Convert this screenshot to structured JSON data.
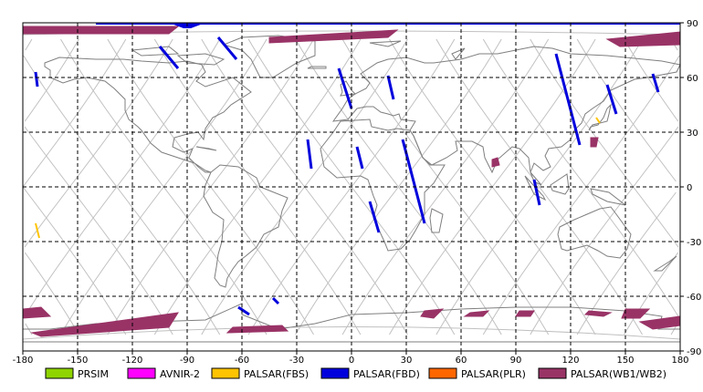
{
  "axes": {
    "x_ticks": [
      "-180",
      "-150",
      "-120",
      "-90",
      "-60",
      "-30",
      "0",
      "30",
      "60",
      "90",
      "120",
      "150",
      "180"
    ],
    "y_ticks": [
      "90",
      "60",
      "30",
      "0",
      "-30",
      "-60",
      "-90"
    ]
  },
  "legend": [
    {
      "label": "PRSIM",
      "color": "#8fd400"
    },
    {
      "label": "AVNIR-2",
      "color": "#ff00ff"
    },
    {
      "label": "PALSAR(FBS)",
      "color": "#ffc400"
    },
    {
      "label": "PALSAR(FBD)",
      "color": "#0000dd"
    },
    {
      "label": "PALSAR(PLR)",
      "color": "#ff6600"
    },
    {
      "label": "PALSAR(WB1/WB2)",
      "color": "#993366"
    }
  ],
  "colors": {
    "coast": "#7f7f7f",
    "orbit": "#c0c0c0",
    "grid": "#000000"
  },
  "fbd_swaths": [
    {
      "lon": [
        -173,
        -172
      ],
      "lat": [
        63,
        55
      ]
    },
    {
      "lon": [
        -73,
        -63
      ],
      "lat": [
        82,
        70
      ]
    },
    {
      "lon": [
        -105,
        -95
      ],
      "lat": [
        77,
        65
      ]
    },
    {
      "lon": [
        -7,
        0
      ],
      "lat": [
        65,
        43
      ]
    },
    {
      "lon": [
        20,
        23
      ],
      "lat": [
        61,
        48
      ]
    },
    {
      "lon": [
        -24,
        -22
      ],
      "lat": [
        26,
        10
      ]
    },
    {
      "lon": [
        3,
        6
      ],
      "lat": [
        22,
        10
      ]
    },
    {
      "lon": [
        10,
        15
      ],
      "lat": [
        -8,
        -25
      ]
    },
    {
      "lon": [
        28,
        40
      ],
      "lat": [
        26,
        -20
      ]
    },
    {
      "lon": [
        112,
        125
      ],
      "lat": [
        73,
        23
      ]
    },
    {
      "lon": [
        140,
        145
      ],
      "lat": [
        56,
        40
      ]
    },
    {
      "lon": [
        165,
        168
      ],
      "lat": [
        62,
        52
      ]
    },
    {
      "lon": [
        100,
        103
      ],
      "lat": [
        4,
        -10
      ]
    },
    {
      "lon": [
        -62,
        -56
      ],
      "lat": [
        -66,
        -70
      ]
    },
    {
      "lon": [
        -43,
        -40
      ],
      "lat": [
        -61,
        -64
      ]
    }
  ],
  "fbs_swaths": [
    {
      "lon": [
        -173,
        -171
      ],
      "lat": [
        -20,
        -28
      ]
    },
    {
      "lon": [
        134,
        136
      ],
      "lat": [
        38,
        35
      ]
    }
  ],
  "wb_patches": [
    [
      [
        -180,
        88
      ],
      [
        -95,
        88
      ],
      [
        -100,
        84
      ],
      [
        -180,
        84
      ]
    ],
    [
      [
        -45,
        82
      ],
      [
        25,
        86
      ],
      [
        20,
        82
      ],
      [
        -45,
        79
      ]
    ],
    [
      [
        140,
        81
      ],
      [
        180,
        85
      ],
      [
        180,
        78
      ],
      [
        147,
        77
      ]
    ],
    [
      [
        -180,
        -67
      ],
      [
        -170,
        -66
      ],
      [
        -165,
        -71
      ],
      [
        -180,
        -72
      ]
    ],
    [
      [
        -175,
        -80
      ],
      [
        -95,
        -69
      ],
      [
        -100,
        -77
      ],
      [
        -170,
        -82
      ]
    ],
    [
      [
        -68,
        -80
      ],
      [
        -35,
        -79
      ],
      [
        -38,
        -76
      ],
      [
        -65,
        -77
      ]
    ],
    [
      [
        40,
        -68
      ],
      [
        50,
        -67
      ],
      [
        45,
        -72
      ],
      [
        38,
        -71
      ]
    ],
    [
      [
        65,
        -69
      ],
      [
        75,
        -68
      ],
      [
        72,
        -71
      ],
      [
        62,
        -71
      ]
    ],
    [
      [
        92,
        -68
      ],
      [
        100,
        -68
      ],
      [
        98,
        -71
      ],
      [
        90,
        -71
      ]
    ],
    [
      [
        130,
        -68
      ],
      [
        142,
        -69
      ],
      [
        138,
        -71
      ],
      [
        128,
        -70
      ]
    ],
    [
      [
        150,
        -67
      ],
      [
        163,
        -67
      ],
      [
        158,
        -72
      ],
      [
        148,
        -72
      ]
    ],
    [
      [
        158,
        -74
      ],
      [
        180,
        -71
      ],
      [
        180,
        -76
      ],
      [
        165,
        -78
      ]
    ],
    [
      [
        77,
        15
      ],
      [
        80,
        16
      ],
      [
        81,
        12
      ],
      [
        77,
        11
      ]
    ],
    [
      [
        131,
        27
      ],
      [
        135,
        27
      ],
      [
        134,
        22
      ],
      [
        131,
        22
      ]
    ]
  ],
  "land": [
    [
      [
        -168,
        68
      ],
      [
        -160,
        71
      ],
      [
        -140,
        70
      ],
      [
        -125,
        70
      ],
      [
        -115,
        69
      ],
      [
        -100,
        68
      ],
      [
        -90,
        69
      ],
      [
        -82,
        67
      ],
      [
        -80,
        63
      ],
      [
        -85,
        58
      ],
      [
        -80,
        55
      ],
      [
        -65,
        60
      ],
      [
        -55,
        52
      ],
      [
        -66,
        45
      ],
      [
        -70,
        41
      ],
      [
        -76,
        38
      ],
      [
        -80,
        32
      ],
      [
        -81,
        26
      ],
      [
        -84,
        30
      ],
      [
        -90,
        29
      ],
      [
        -97,
        27
      ],
      [
        -98,
        22
      ],
      [
        -92,
        19
      ],
      [
        -87,
        21
      ],
      [
        -89,
        16
      ],
      [
        -84,
        11
      ],
      [
        -80,
        8
      ],
      [
        -77,
        8
      ],
      [
        -80,
        9
      ],
      [
        -86,
        13
      ],
      [
        -92,
        15
      ],
      [
        -104,
        19
      ],
      [
        -110,
        24
      ],
      [
        -115,
        31
      ],
      [
        -117,
        33
      ],
      [
        -122,
        37
      ],
      [
        -124,
        42
      ],
      [
        -124,
        48
      ],
      [
        -130,
        54
      ],
      [
        -135,
        58
      ],
      [
        -145,
        60
      ],
      [
        -152,
        59
      ],
      [
        -158,
        57
      ],
      [
        -165,
        60
      ],
      [
        -165,
        64
      ],
      [
        -168,
        66
      ]
    ],
    [
      [
        -77,
        8
      ],
      [
        -72,
        12
      ],
      [
        -62,
        11
      ],
      [
        -52,
        5
      ],
      [
        -50,
        0
      ],
      [
        -45,
        -2
      ],
      [
        -35,
        -6
      ],
      [
        -38,
        -13
      ],
      [
        -40,
        -22
      ],
      [
        -48,
        -26
      ],
      [
        -52,
        -33
      ],
      [
        -58,
        -38
      ],
      [
        -62,
        -41
      ],
      [
        -65,
        -45
      ],
      [
        -68,
        -50
      ],
      [
        -69,
        -55
      ],
      [
        -72,
        -54
      ],
      [
        -75,
        -50
      ],
      [
        -74,
        -44
      ],
      [
        -73,
        -37
      ],
      [
        -71,
        -30
      ],
      [
        -70,
        -18
      ],
      [
        -76,
        -14
      ],
      [
        -81,
        -5
      ],
      [
        -80,
        1
      ]
    ],
    [
      [
        -50,
        60
      ],
      [
        -43,
        60
      ],
      [
        -30,
        68
      ],
      [
        -20,
        72
      ],
      [
        -20,
        80
      ],
      [
        -40,
        83
      ],
      [
        -60,
        82
      ],
      [
        -70,
        78
      ],
      [
        -60,
        75
      ],
      [
        -55,
        70
      ]
    ],
    [
      [
        -10,
        36
      ],
      [
        -5,
        43
      ],
      [
        -2,
        48
      ],
      [
        2,
        51
      ],
      [
        8,
        54
      ],
      [
        10,
        57
      ],
      [
        5,
        62
      ],
      [
        14,
        68
      ],
      [
        20,
        70
      ],
      [
        30,
        71
      ],
      [
        40,
        68
      ],
      [
        45,
        68
      ],
      [
        60,
        70
      ],
      [
        70,
        73
      ],
      [
        80,
        73
      ],
      [
        100,
        77
      ],
      [
        110,
        76
      ],
      [
        120,
        73
      ],
      [
        140,
        72
      ],
      [
        160,
        70
      ],
      [
        170,
        69
      ],
      [
        180,
        67
      ],
      [
        178,
        63
      ],
      [
        162,
        60
      ],
      [
        155,
        59
      ],
      [
        142,
        53
      ],
      [
        138,
        47
      ],
      [
        132,
        43
      ],
      [
        128,
        40
      ],
      [
        126,
        35
      ],
      [
        122,
        31
      ],
      [
        120,
        26
      ],
      [
        115,
        22
      ],
      [
        108,
        21
      ],
      [
        106,
        17
      ],
      [
        109,
        11
      ],
      [
        105,
        9
      ],
      [
        100,
        13
      ],
      [
        98,
        8
      ],
      [
        100,
        3
      ],
      [
        104,
        1
      ],
      [
        98,
        8
      ],
      [
        97,
        16
      ],
      [
        92,
        21
      ],
      [
        88,
        22
      ],
      [
        80,
        15
      ],
      [
        77,
        8
      ],
      [
        73,
        16
      ],
      [
        72,
        22
      ],
      [
        66,
        25
      ],
      [
        57,
        25
      ],
      [
        58,
        20
      ],
      [
        52,
        16
      ],
      [
        44,
        12
      ],
      [
        39,
        16
      ],
      [
        34,
        28
      ],
      [
        32,
        31
      ],
      [
        35,
        36
      ],
      [
        27,
        37
      ],
      [
        26,
        40
      ],
      [
        23,
        39
      ],
      [
        20,
        40
      ],
      [
        16,
        41
      ],
      [
        12,
        44
      ],
      [
        8,
        44
      ],
      [
        3,
        43
      ],
      [
        -2,
        37
      ]
    ],
    [
      [
        -17,
        21
      ],
      [
        -10,
        30
      ],
      [
        -6,
        36
      ],
      [
        10,
        37
      ],
      [
        11,
        33
      ],
      [
        20,
        31
      ],
      [
        25,
        32
      ],
      [
        32,
        31
      ],
      [
        34,
        28
      ],
      [
        39,
        16
      ],
      [
        43,
        12
      ],
      [
        51,
        12
      ],
      [
        45,
        2
      ],
      [
        40,
        -3
      ],
      [
        40,
        -15
      ],
      [
        35,
        -24
      ],
      [
        32,
        -29
      ],
      [
        27,
        -34
      ],
      [
        20,
        -35
      ],
      [
        18,
        -30
      ],
      [
        12,
        -17
      ],
      [
        14,
        -10
      ],
      [
        12,
        -5
      ],
      [
        9,
        4
      ],
      [
        5,
        6
      ],
      [
        -8,
        5
      ],
      [
        -15,
        11
      ]
    ],
    [
      [
        114,
        -22
      ],
      [
        122,
        -18
      ],
      [
        129,
        -15
      ],
      [
        136,
        -12
      ],
      [
        142,
        -11
      ],
      [
        145,
        -15
      ],
      [
        153,
        -26
      ],
      [
        151,
        -34
      ],
      [
        147,
        -39
      ],
      [
        140,
        -38
      ],
      [
        135,
        -35
      ],
      [
        129,
        -32
      ],
      [
        118,
        -35
      ],
      [
        115,
        -34
      ],
      [
        113,
        -26
      ]
    ],
    [
      [
        -165,
        -78
      ],
      [
        -140,
        -75
      ],
      [
        -110,
        -74
      ],
      [
        -80,
        -73
      ],
      [
        -60,
        -64
      ],
      [
        -60,
        -70
      ],
      [
        -40,
        -78
      ],
      [
        -20,
        -75
      ],
      [
        0,
        -70
      ],
      [
        30,
        -69
      ],
      [
        60,
        -67
      ],
      [
        90,
        -66
      ],
      [
        120,
        -66
      ],
      [
        150,
        -68
      ],
      [
        170,
        -71
      ],
      [
        168,
        -78
      ],
      [
        180,
        -78
      ],
      [
        180,
        -85
      ],
      [
        -180,
        -85
      ],
      [
        -180,
        -78
      ]
    ],
    [
      [
        44,
        -12
      ],
      [
        50,
        -15
      ],
      [
        48,
        -25
      ],
      [
        44,
        -25
      ],
      [
        43,
        -17
      ]
    ],
    [
      [
        130,
        31
      ],
      [
        132,
        34
      ],
      [
        136,
        35
      ],
      [
        140,
        36
      ],
      [
        141,
        40
      ],
      [
        142,
        45
      ],
      [
        140,
        43
      ],
      [
        138,
        38
      ],
      [
        135,
        34
      ],
      [
        131,
        33
      ]
    ],
    [
      [
        -6,
        50
      ],
      [
        2,
        51
      ],
      [
        0,
        53
      ],
      [
        -3,
        58
      ],
      [
        -6,
        56
      ],
      [
        -5,
        52
      ]
    ],
    [
      [
        95,
        6
      ],
      [
        105,
        -5
      ],
      [
        106,
        -7
      ],
      [
        100,
        -4
      ]
    ],
    [
      [
        109,
        1
      ],
      [
        118,
        7
      ],
      [
        119,
        -1
      ],
      [
        117,
        -4
      ],
      [
        110,
        -2
      ]
    ],
    [
      [
        131,
        -1
      ],
      [
        141,
        -3
      ],
      [
        150,
        -10
      ],
      [
        140,
        -8
      ],
      [
        132,
        -4
      ]
    ],
    [
      [
        -85,
        22
      ],
      [
        -74,
        20
      ],
      [
        -78,
        21
      ]
    ],
    [
      [
        166,
        -46
      ],
      [
        174,
        -41
      ],
      [
        178,
        -38
      ],
      [
        175,
        -41
      ],
      [
        170,
        -46
      ]
    ],
    [
      [
        -24,
        65
      ],
      [
        -14,
        65
      ],
      [
        -14,
        66
      ],
      [
        -22,
        66
      ]
    ],
    [
      [
        -95,
        72
      ],
      [
        -80,
        73
      ],
      [
        -70,
        70
      ],
      [
        -75,
        67
      ],
      [
        -90,
        68
      ]
    ],
    [
      [
        -120,
        75
      ],
      [
        -100,
        77
      ],
      [
        -95,
        73
      ],
      [
        -115,
        72
      ]
    ],
    [
      [
        10,
        79
      ],
      [
        27,
        80
      ],
      [
        20,
        77
      ]
    ],
    [
      [
        55,
        73
      ],
      [
        62,
        76
      ],
      [
        57,
        70
      ]
    ]
  ]
}
